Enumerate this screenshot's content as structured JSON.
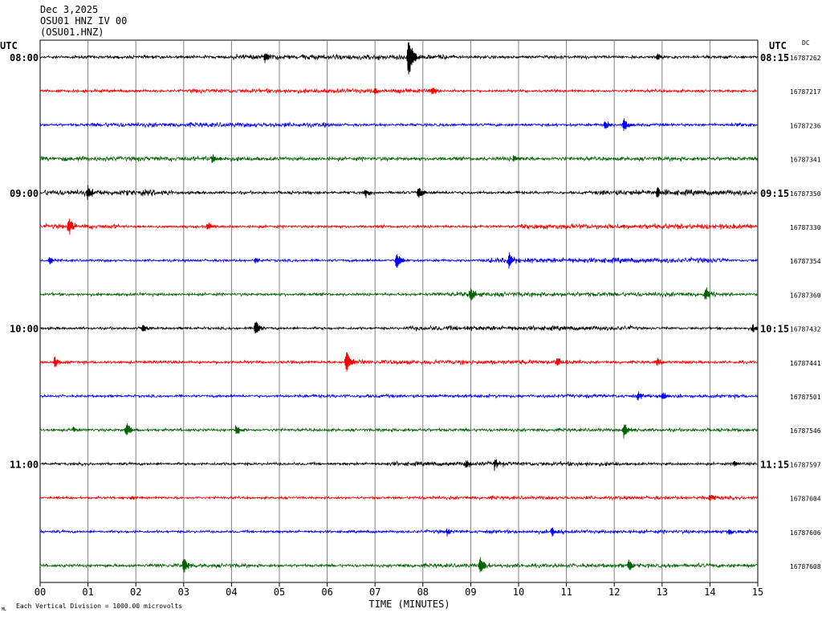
{
  "header": {
    "date": "Dec 3,2025",
    "station": "OSU01 HNZ IV 00",
    "channel": "(OSU01.HNZ)"
  },
  "chart_data": {
    "type": "line",
    "title": "",
    "xlabel": "TIME (MINUTES)",
    "ylabel": "",
    "left_axis_label": "UTC",
    "right_axis_label": "UTC",
    "right_corner_label": "DC",
    "footnote": "Each Vertical Division = 1000.00 microvolts",
    "footnote_mark": "ML",
    "x_ticks": [
      "00",
      "01",
      "02",
      "03",
      "04",
      "05",
      "06",
      "07",
      "08",
      "09",
      "10",
      "11",
      "12",
      "13",
      "14",
      "15"
    ],
    "xlim": [
      0,
      15
    ],
    "grid": "vertical lines at each minute",
    "trace_colors": [
      "#000000",
      "#ff0000",
      "#0000ff",
      "#006400"
    ],
    "left_time_labels": [
      {
        "row": 0,
        "label": "08:00"
      },
      {
        "row": 4,
        "label": "09:00"
      },
      {
        "row": 8,
        "label": "10:00"
      },
      {
        "row": 12,
        "label": "11:00"
      }
    ],
    "right_time_labels": [
      {
        "row": 0,
        "label": "08:15"
      },
      {
        "row": 4,
        "label": "09:15"
      },
      {
        "row": 8,
        "label": "10:15"
      },
      {
        "row": 12,
        "label": "11:15"
      }
    ],
    "dc_offsets": [
      "16787262",
      "16787217",
      "16787236",
      "16787341",
      "16787350",
      "16787330",
      "16787354",
      "16787360",
      "16787432",
      "16787441",
      "16787501",
      "16787546",
      "16787597",
      "16787604",
      "16787606",
      "16787608"
    ],
    "traces": [
      {
        "base": 2.6,
        "bursts": [
          {
            "x0": 4.0,
            "x1": 8.7,
            "amp": 4.5
          }
        ],
        "spikes": [
          {
            "x": 4.7,
            "amp": 7
          },
          {
            "x": 7.7,
            "amp": 28
          },
          {
            "x": 12.9,
            "amp": 5
          }
        ]
      },
      {
        "base": 2.3,
        "bursts": [
          {
            "x0": 3.1,
            "x1": 8.3,
            "amp": 3.8
          }
        ],
        "spikes": [
          {
            "x": 7.0,
            "amp": 6
          },
          {
            "x": 8.2,
            "amp": 6
          }
        ]
      },
      {
        "base": 2.4,
        "bursts": [
          {
            "x0": 1.0,
            "x1": 6.1,
            "amp": 4.0
          },
          {
            "x0": 14.4,
            "x1": 15.0,
            "amp": 4.0
          }
        ],
        "spikes": [
          {
            "x": 11.8,
            "amp": 7
          },
          {
            "x": 12.2,
            "amp": 10
          }
        ]
      },
      {
        "base": 3.2,
        "bursts": [
          {
            "x0": 0.0,
            "x1": 4.6,
            "amp": 4.0
          },
          {
            "x0": 12.7,
            "x1": 15.0,
            "amp": 3.5
          }
        ],
        "spikes": [
          {
            "x": 3.6,
            "amp": 7
          },
          {
            "x": 9.9,
            "amp": 5
          }
        ]
      },
      {
        "base": 2.5,
        "bursts": [
          {
            "x0": 0.0,
            "x1": 2.8,
            "amp": 5.0
          },
          {
            "x0": 11.6,
            "x1": 15.0,
            "amp": 5.0
          }
        ],
        "spikes": [
          {
            "x": 1.0,
            "amp": 9
          },
          {
            "x": 6.8,
            "amp": 6
          },
          {
            "x": 7.9,
            "amp": 8
          },
          {
            "x": 12.9,
            "amp": 7
          }
        ]
      },
      {
        "base": 2.3,
        "bursts": [
          {
            "x0": 0.0,
            "x1": 1.7,
            "amp": 4.0
          },
          {
            "x0": 10.0,
            "x1": 15.0,
            "amp": 4.5
          }
        ],
        "spikes": [
          {
            "x": 0.6,
            "amp": 11
          },
          {
            "x": 3.5,
            "amp": 5
          }
        ]
      },
      {
        "base": 2.2,
        "bursts": [
          {
            "x0": 9.3,
            "x1": 14.4,
            "amp": 4.5
          }
        ],
        "spikes": [
          {
            "x": 0.2,
            "amp": 5
          },
          {
            "x": 4.5,
            "amp": 4
          },
          {
            "x": 7.45,
            "amp": 12
          },
          {
            "x": 9.8,
            "amp": 10
          }
        ]
      },
      {
        "base": 2.4,
        "bursts": [
          {
            "x0": 8.2,
            "x1": 14.2,
            "amp": 4.0
          }
        ],
        "spikes": [
          {
            "x": 9.0,
            "amp": 9
          },
          {
            "x": 13.9,
            "amp": 9
          }
        ]
      },
      {
        "base": 2.2,
        "bursts": [
          {
            "x0": 7.6,
            "x1": 12.5,
            "amp": 4.0
          }
        ],
        "spikes": [
          {
            "x": 2.15,
            "amp": 6
          },
          {
            "x": 4.5,
            "amp": 10
          },
          {
            "x": 14.9,
            "amp": 5
          }
        ]
      },
      {
        "base": 2.5,
        "bursts": [
          {
            "x0": 6.6,
            "x1": 11.4,
            "amp": 3.8
          }
        ],
        "spikes": [
          {
            "x": 0.3,
            "amp": 7
          },
          {
            "x": 6.4,
            "amp": 16
          },
          {
            "x": 10.8,
            "amp": 6
          },
          {
            "x": 12.9,
            "amp": 5
          }
        ]
      },
      {
        "base": 2.2,
        "bursts": [
          {
            "x0": 5.3,
            "x1": 15.0,
            "amp": 3.0
          }
        ],
        "spikes": [
          {
            "x": 12.5,
            "amp": 5
          },
          {
            "x": 13.0,
            "amp": 5
          }
        ]
      },
      {
        "base": 2.4,
        "bursts": [
          {
            "x0": 7.0,
            "x1": 15.0,
            "amp": 2.8
          }
        ],
        "spikes": [
          {
            "x": 0.7,
            "amp": 4
          },
          {
            "x": 1.8,
            "amp": 10
          },
          {
            "x": 4.1,
            "amp": 7
          },
          {
            "x": 12.2,
            "amp": 11
          }
        ]
      },
      {
        "base": 2.3,
        "bursts": [
          {
            "x0": 7.2,
            "x1": 12.2,
            "amp": 3.8
          }
        ],
        "spikes": [
          {
            "x": 8.9,
            "amp": 6
          },
          {
            "x": 9.5,
            "amp": 7
          },
          {
            "x": 14.5,
            "amp": 4
          }
        ]
      },
      {
        "base": 2.0,
        "bursts": [
          {
            "x0": 7.7,
            "x1": 15.0,
            "amp": 3.0
          }
        ],
        "spikes": [
          {
            "x": 1.9,
            "amp": 3
          },
          {
            "x": 14.0,
            "amp": 6
          }
        ]
      },
      {
        "base": 2.2,
        "bursts": [
          {
            "x0": 7.8,
            "x1": 15.0,
            "amp": 3.0
          }
        ],
        "spikes": [
          {
            "x": 8.5,
            "amp": 5
          },
          {
            "x": 10.7,
            "amp": 6
          },
          {
            "x": 14.4,
            "amp": 4
          }
        ]
      },
      {
        "base": 2.6,
        "bursts": [
          {
            "x0": 2.2,
            "x1": 4.4,
            "amp": 3.5
          },
          {
            "x0": 7.4,
            "x1": 15.0,
            "amp": 3.4
          }
        ],
        "spikes": [
          {
            "x": 3.0,
            "amp": 10
          },
          {
            "x": 9.2,
            "amp": 12
          },
          {
            "x": 12.3,
            "amp": 9
          }
        ]
      }
    ]
  }
}
